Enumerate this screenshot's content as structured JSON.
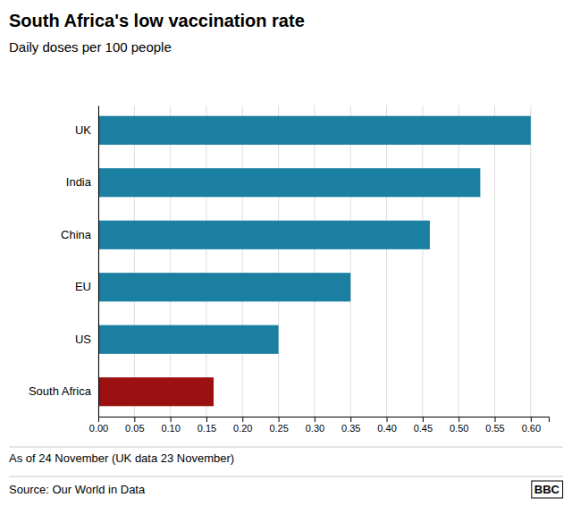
{
  "chart_data": {
    "type": "bar",
    "orientation": "horizontal",
    "title": "South Africa's low vaccination rate",
    "subtitle": "Daily doses per 100 people",
    "categories": [
      "UK",
      "India",
      "China",
      "EU",
      "US",
      "South Africa"
    ],
    "values": [
      0.6,
      0.53,
      0.46,
      0.35,
      0.25,
      0.16
    ],
    "colors": [
      "#1a7fa0",
      "#1a7fa0",
      "#1a7fa0",
      "#1a7fa0",
      "#1a7fa0",
      "#9b1010"
    ],
    "xlim": [
      0,
      0.625
    ],
    "xticks": [
      {
        "value": 0.0,
        "label": "0.00"
      },
      {
        "value": 0.05,
        "label": "0.05"
      },
      {
        "value": 0.1,
        "label": "0.10"
      },
      {
        "value": 0.15,
        "label": "0.15"
      },
      {
        "value": 0.2,
        "label": "0.20"
      },
      {
        "value": 0.25,
        "label": "0.25"
      },
      {
        "value": 0.3,
        "label": "0.30"
      },
      {
        "value": 0.35,
        "label": "0.35"
      },
      {
        "value": 0.4,
        "label": "0.40"
      },
      {
        "value": 0.45,
        "label": "0.45"
      },
      {
        "value": 0.5,
        "label": "0.50"
      },
      {
        "value": 0.55,
        "label": "0.55"
      },
      {
        "value": 0.6,
        "label": "0.60"
      }
    ],
    "grid": true,
    "annotations": [
      "As of 24 November (UK data 23 November)",
      "Source: Our World in Data",
      "BBC"
    ]
  }
}
